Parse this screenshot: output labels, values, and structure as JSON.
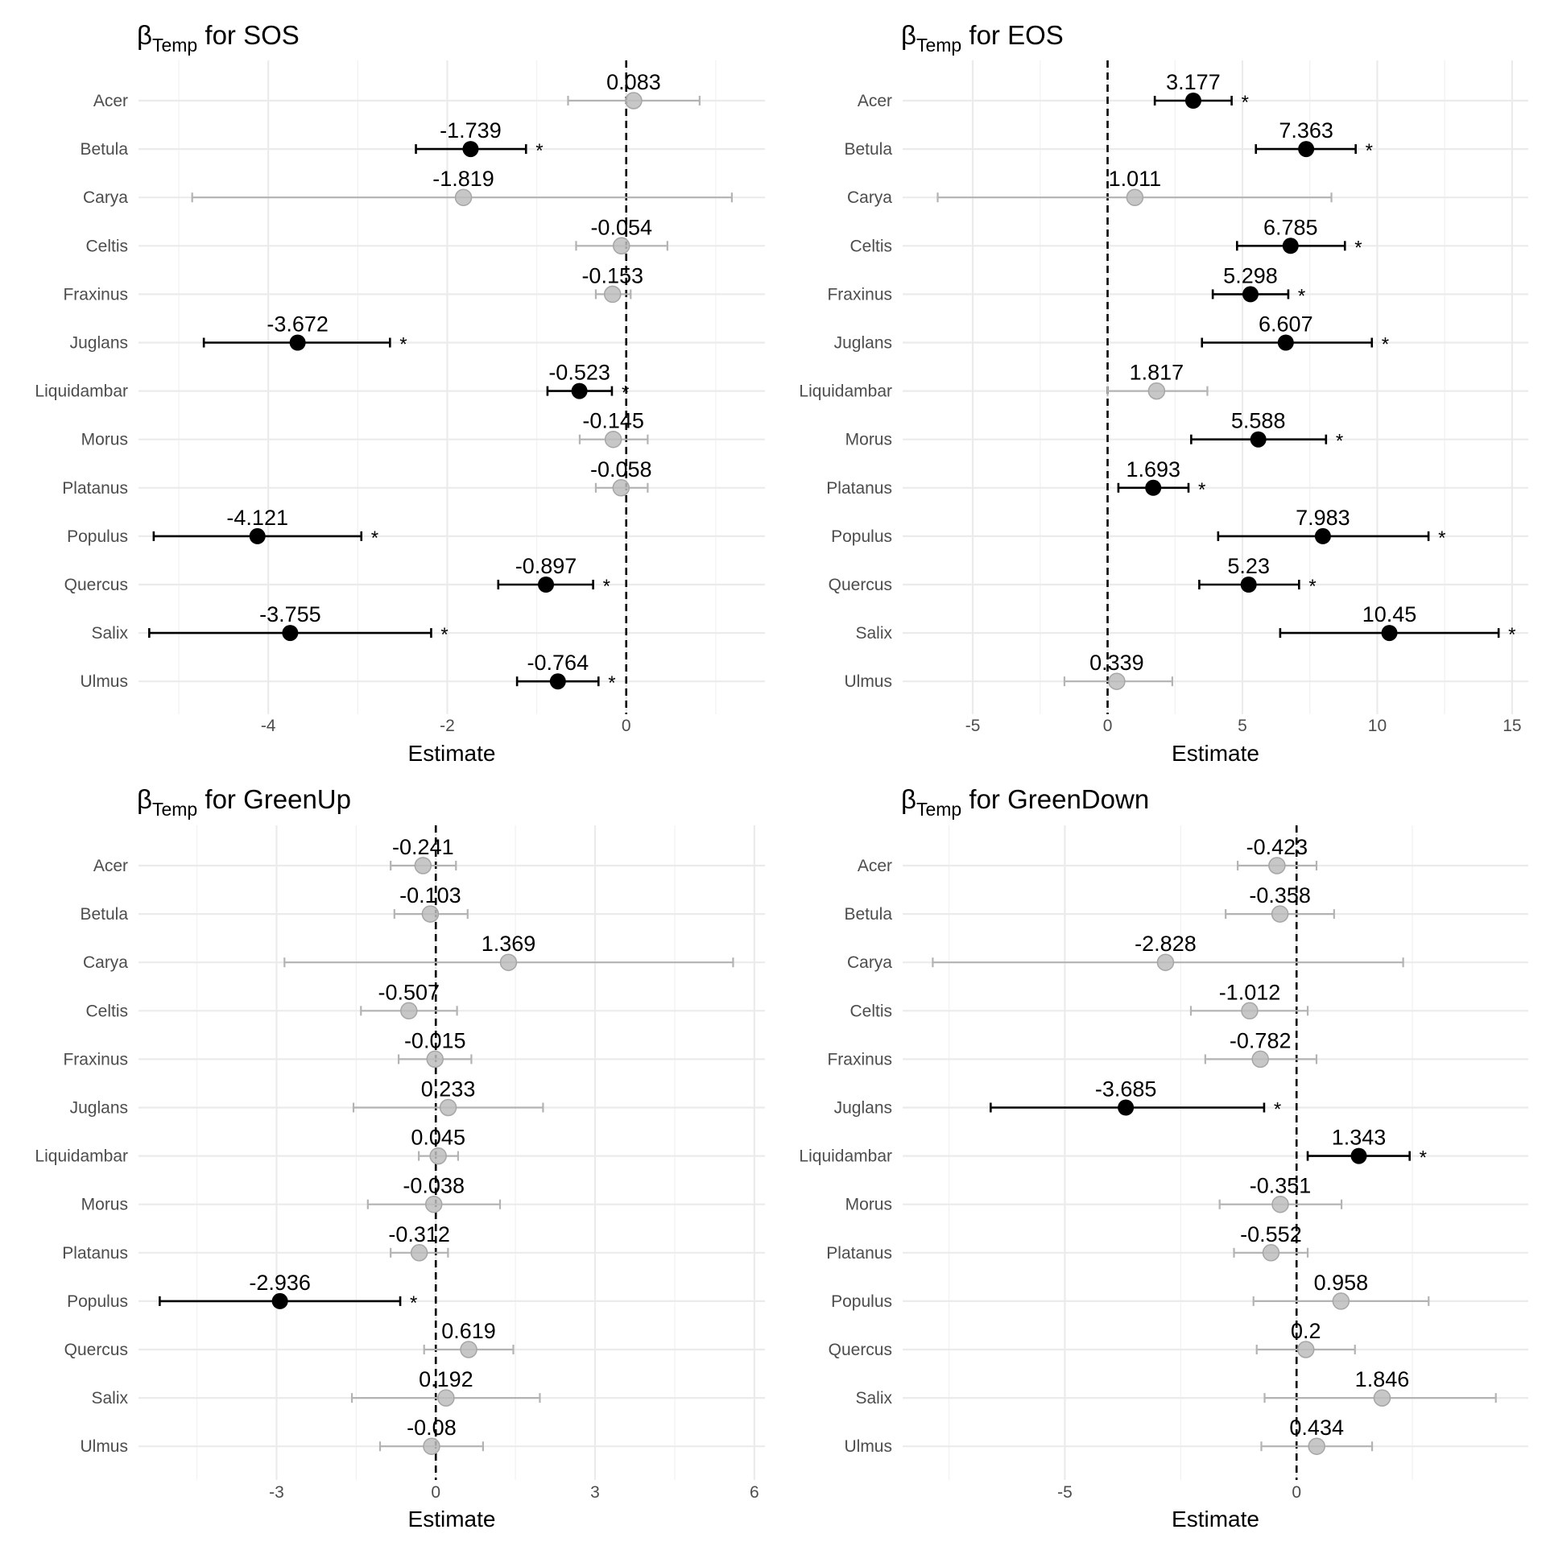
{
  "species": [
    "Acer",
    "Betula",
    "Carya",
    "Celtis",
    "Fraxinus",
    "Juglans",
    "Liquidambar",
    "Morus",
    "Platanus",
    "Populus",
    "Quercus",
    "Salix",
    "Ulmus"
  ],
  "colors": {
    "significant": "#000000",
    "nonsignificant": "#b3b3b3",
    "grid": "#ebebeb",
    "text": "#000000",
    "axis_text": "#4d4d4d"
  },
  "chart_data": [
    {
      "type": "scatter",
      "title_prefix": "β",
      "title_sub": "Temp",
      "title_suffix": " for SOS",
      "xlabel": "Estimate",
      "ylabel": "",
      "xlim": [
        -5.45,
        1.55
      ],
      "xticks": [
        -4,
        -2,
        0
      ],
      "xtick_labels": [
        "-4",
        "-2",
        "0"
      ],
      "minor_xticks": [
        -5,
        -3,
        -1,
        1
      ],
      "grid": true,
      "ref_line": 0,
      "points": [
        {
          "species": "Acer",
          "estimate": 0.083,
          "label": "0.083",
          "lo": -0.65,
          "hi": 0.82,
          "sig": false
        },
        {
          "species": "Betula",
          "estimate": -1.739,
          "label": "-1.739",
          "lo": -2.35,
          "hi": -1.12,
          "sig": true
        },
        {
          "species": "Carya",
          "estimate": -1.819,
          "label": "-1.819",
          "lo": -4.85,
          "hi": 1.18,
          "sig": false
        },
        {
          "species": "Celtis",
          "estimate": -0.054,
          "label": "-0.054",
          "lo": -0.56,
          "hi": 0.46,
          "sig": false
        },
        {
          "species": "Fraxinus",
          "estimate": -0.153,
          "label": "-0.153",
          "lo": -0.34,
          "hi": 0.05,
          "sig": false
        },
        {
          "species": "Juglans",
          "estimate": -3.672,
          "label": "-3.672",
          "lo": -4.72,
          "hi": -2.64,
          "sig": true
        },
        {
          "species": "Liquidambar",
          "estimate": -0.523,
          "label": "-0.523",
          "lo": -0.88,
          "hi": -0.16,
          "sig": true
        },
        {
          "species": "Morus",
          "estimate": -0.145,
          "label": "-0.145",
          "lo": -0.52,
          "hi": 0.24,
          "sig": false
        },
        {
          "species": "Platanus",
          "estimate": -0.058,
          "label": "-0.058",
          "lo": -0.34,
          "hi": 0.24,
          "sig": false
        },
        {
          "species": "Populus",
          "estimate": -4.121,
          "label": "-4.121",
          "lo": -5.28,
          "hi": -2.96,
          "sig": true
        },
        {
          "species": "Quercus",
          "estimate": -0.897,
          "label": "-0.897",
          "lo": -1.43,
          "hi": -0.37,
          "sig": true
        },
        {
          "species": "Salix",
          "estimate": -3.755,
          "label": "-3.755",
          "lo": -5.33,
          "hi": -2.18,
          "sig": true
        },
        {
          "species": "Ulmus",
          "estimate": -0.764,
          "label": "-0.764",
          "lo": -1.22,
          "hi": -0.31,
          "sig": true
        }
      ]
    },
    {
      "type": "scatter",
      "title_prefix": "β",
      "title_sub": "Temp",
      "title_suffix": " for EOS",
      "xlabel": "Estimate",
      "ylabel": "",
      "xlim": [
        -7.6,
        15.6
      ],
      "xticks": [
        -5,
        0,
        5,
        10,
        15
      ],
      "xtick_labels": [
        "-5",
        "0",
        "5",
        "10",
        "15"
      ],
      "minor_xticks": [
        -2.5,
        2.5,
        7.5,
        12.5
      ],
      "grid": true,
      "ref_line": 0,
      "points": [
        {
          "species": "Acer",
          "estimate": 3.177,
          "label": "3.177",
          "lo": 1.75,
          "hi": 4.6,
          "sig": true
        },
        {
          "species": "Betula",
          "estimate": 7.363,
          "label": "7.363",
          "lo": 5.5,
          "hi": 9.2,
          "sig": true
        },
        {
          "species": "Carya",
          "estimate": 1.011,
          "label": "1.011",
          "lo": -6.3,
          "hi": 8.3,
          "sig": false
        },
        {
          "species": "Celtis",
          "estimate": 6.785,
          "label": "6.785",
          "lo": 4.8,
          "hi": 8.8,
          "sig": true
        },
        {
          "species": "Fraxinus",
          "estimate": 5.298,
          "label": "5.298",
          "lo": 3.9,
          "hi": 6.7,
          "sig": true
        },
        {
          "species": "Juglans",
          "estimate": 6.607,
          "label": "6.607",
          "lo": 3.5,
          "hi": 9.8,
          "sig": true
        },
        {
          "species": "Liquidambar",
          "estimate": 1.817,
          "label": "1.817",
          "lo": 0.0,
          "hi": 3.7,
          "sig": false
        },
        {
          "species": "Morus",
          "estimate": 5.588,
          "label": "5.588",
          "lo": 3.1,
          "hi": 8.1,
          "sig": true
        },
        {
          "species": "Platanus",
          "estimate": 1.693,
          "label": "1.693",
          "lo": 0.4,
          "hi": 3.0,
          "sig": true
        },
        {
          "species": "Populus",
          "estimate": 7.983,
          "label": "7.983",
          "lo": 4.1,
          "hi": 11.9,
          "sig": true
        },
        {
          "species": "Quercus",
          "estimate": 5.23,
          "label": "5.23",
          "lo": 3.4,
          "hi": 7.1,
          "sig": true
        },
        {
          "species": "Salix",
          "estimate": 10.45,
          "label": "10.45",
          "lo": 6.4,
          "hi": 14.5,
          "sig": true
        },
        {
          "species": "Ulmus",
          "estimate": 0.339,
          "label": "0.339",
          "lo": -1.6,
          "hi": 2.4,
          "sig": false
        }
      ]
    },
    {
      "type": "scatter",
      "title_prefix": "β",
      "title_sub": "Temp",
      "title_suffix": " for GreenUp",
      "xlabel": "Estimate",
      "ylabel": "",
      "xlim": [
        -5.6,
        6.2
      ],
      "xticks": [
        -3,
        0,
        3,
        6
      ],
      "xtick_labels": [
        "-3",
        "0",
        "3",
        "6"
      ],
      "minor_xticks": [
        -4.5,
        -1.5,
        1.5,
        4.5
      ],
      "grid": true,
      "ref_line": 0,
      "points": [
        {
          "species": "Acer",
          "estimate": -0.241,
          "label": "-0.241",
          "lo": -0.85,
          "hi": 0.38,
          "sig": false
        },
        {
          "species": "Betula",
          "estimate": -0.103,
          "label": "-0.103",
          "lo": -0.78,
          "hi": 0.6,
          "sig": false
        },
        {
          "species": "Carya",
          "estimate": 1.369,
          "label": "1.369",
          "lo": -2.85,
          "hi": 5.6,
          "sig": false
        },
        {
          "species": "Celtis",
          "estimate": -0.507,
          "label": "-0.507",
          "lo": -1.41,
          "hi": 0.4,
          "sig": false
        },
        {
          "species": "Fraxinus",
          "estimate": -0.015,
          "label": "-0.015",
          "lo": -0.7,
          "hi": 0.67,
          "sig": false
        },
        {
          "species": "Juglans",
          "estimate": 0.233,
          "label": "0.233",
          "lo": -1.55,
          "hi": 2.02,
          "sig": false
        },
        {
          "species": "Liquidambar",
          "estimate": 0.045,
          "label": "0.045",
          "lo": -0.32,
          "hi": 0.42,
          "sig": false
        },
        {
          "species": "Morus",
          "estimate": -0.038,
          "label": "-0.038",
          "lo": -1.28,
          "hi": 1.21,
          "sig": false
        },
        {
          "species": "Platanus",
          "estimate": -0.312,
          "label": "-0.312",
          "lo": -0.85,
          "hi": 0.23,
          "sig": false
        },
        {
          "species": "Populus",
          "estimate": -2.936,
          "label": "-2.936",
          "lo": -5.2,
          "hi": -0.67,
          "sig": true
        },
        {
          "species": "Quercus",
          "estimate": 0.619,
          "label": "0.619",
          "lo": -0.22,
          "hi": 1.46,
          "sig": false
        },
        {
          "species": "Salix",
          "estimate": 0.192,
          "label": "0.192",
          "lo": -1.58,
          "hi": 1.96,
          "sig": false
        },
        {
          "species": "Ulmus",
          "estimate": -0.08,
          "label": "-0.08",
          "lo": -1.05,
          "hi": 0.89,
          "sig": false
        }
      ]
    },
    {
      "type": "scatter",
      "title_prefix": "β",
      "title_sub": "Temp",
      "title_suffix": " for GreenDown",
      "xlabel": "Estimate",
      "ylabel": "",
      "xlim": [
        -8.5,
        5.0
      ],
      "xticks": [
        -5,
        0
      ],
      "xtick_labels": [
        "-5",
        "0"
      ],
      "minor_xticks": [
        -7.5,
        -2.5,
        2.5
      ],
      "grid": true,
      "ref_line": 0,
      "points": [
        {
          "species": "Acer",
          "estimate": -0.423,
          "label": "-0.423",
          "lo": -1.27,
          "hi": 0.43,
          "sig": false
        },
        {
          "species": "Betula",
          "estimate": -0.358,
          "label": "-0.358",
          "lo": -1.53,
          "hi": 0.81,
          "sig": false
        },
        {
          "species": "Carya",
          "estimate": -2.828,
          "label": "-2.828",
          "lo": -7.85,
          "hi": 2.3,
          "sig": false
        },
        {
          "species": "Celtis",
          "estimate": -1.012,
          "label": "-1.012",
          "lo": -2.28,
          "hi": 0.24,
          "sig": false
        },
        {
          "species": "Fraxinus",
          "estimate": -0.782,
          "label": "-0.782",
          "lo": -1.97,
          "hi": 0.43,
          "sig": false
        },
        {
          "species": "Juglans",
          "estimate": -3.685,
          "label": "-3.685",
          "lo": -6.6,
          "hi": -0.7,
          "sig": true
        },
        {
          "species": "Liquidambar",
          "estimate": 1.343,
          "label": "1.343",
          "lo": 0.24,
          "hi": 2.44,
          "sig": true
        },
        {
          "species": "Morus",
          "estimate": -0.351,
          "label": "-0.351",
          "lo": -1.66,
          "hi": 0.97,
          "sig": false
        },
        {
          "species": "Platanus",
          "estimate": -0.552,
          "label": "-0.552",
          "lo": -1.35,
          "hi": 0.24,
          "sig": false
        },
        {
          "species": "Populus",
          "estimate": 0.958,
          "label": "0.958",
          "lo": -0.93,
          "hi": 2.85,
          "sig": false
        },
        {
          "species": "Quercus",
          "estimate": 0.2,
          "label": "0.2",
          "lo": -0.86,
          "hi": 1.26,
          "sig": false
        },
        {
          "species": "Salix",
          "estimate": 1.846,
          "label": "1.846",
          "lo": -0.69,
          "hi": 4.3,
          "sig": false
        },
        {
          "species": "Ulmus",
          "estimate": 0.434,
          "label": "0.434",
          "lo": -0.76,
          "hi": 1.63,
          "sig": false
        }
      ]
    }
  ]
}
